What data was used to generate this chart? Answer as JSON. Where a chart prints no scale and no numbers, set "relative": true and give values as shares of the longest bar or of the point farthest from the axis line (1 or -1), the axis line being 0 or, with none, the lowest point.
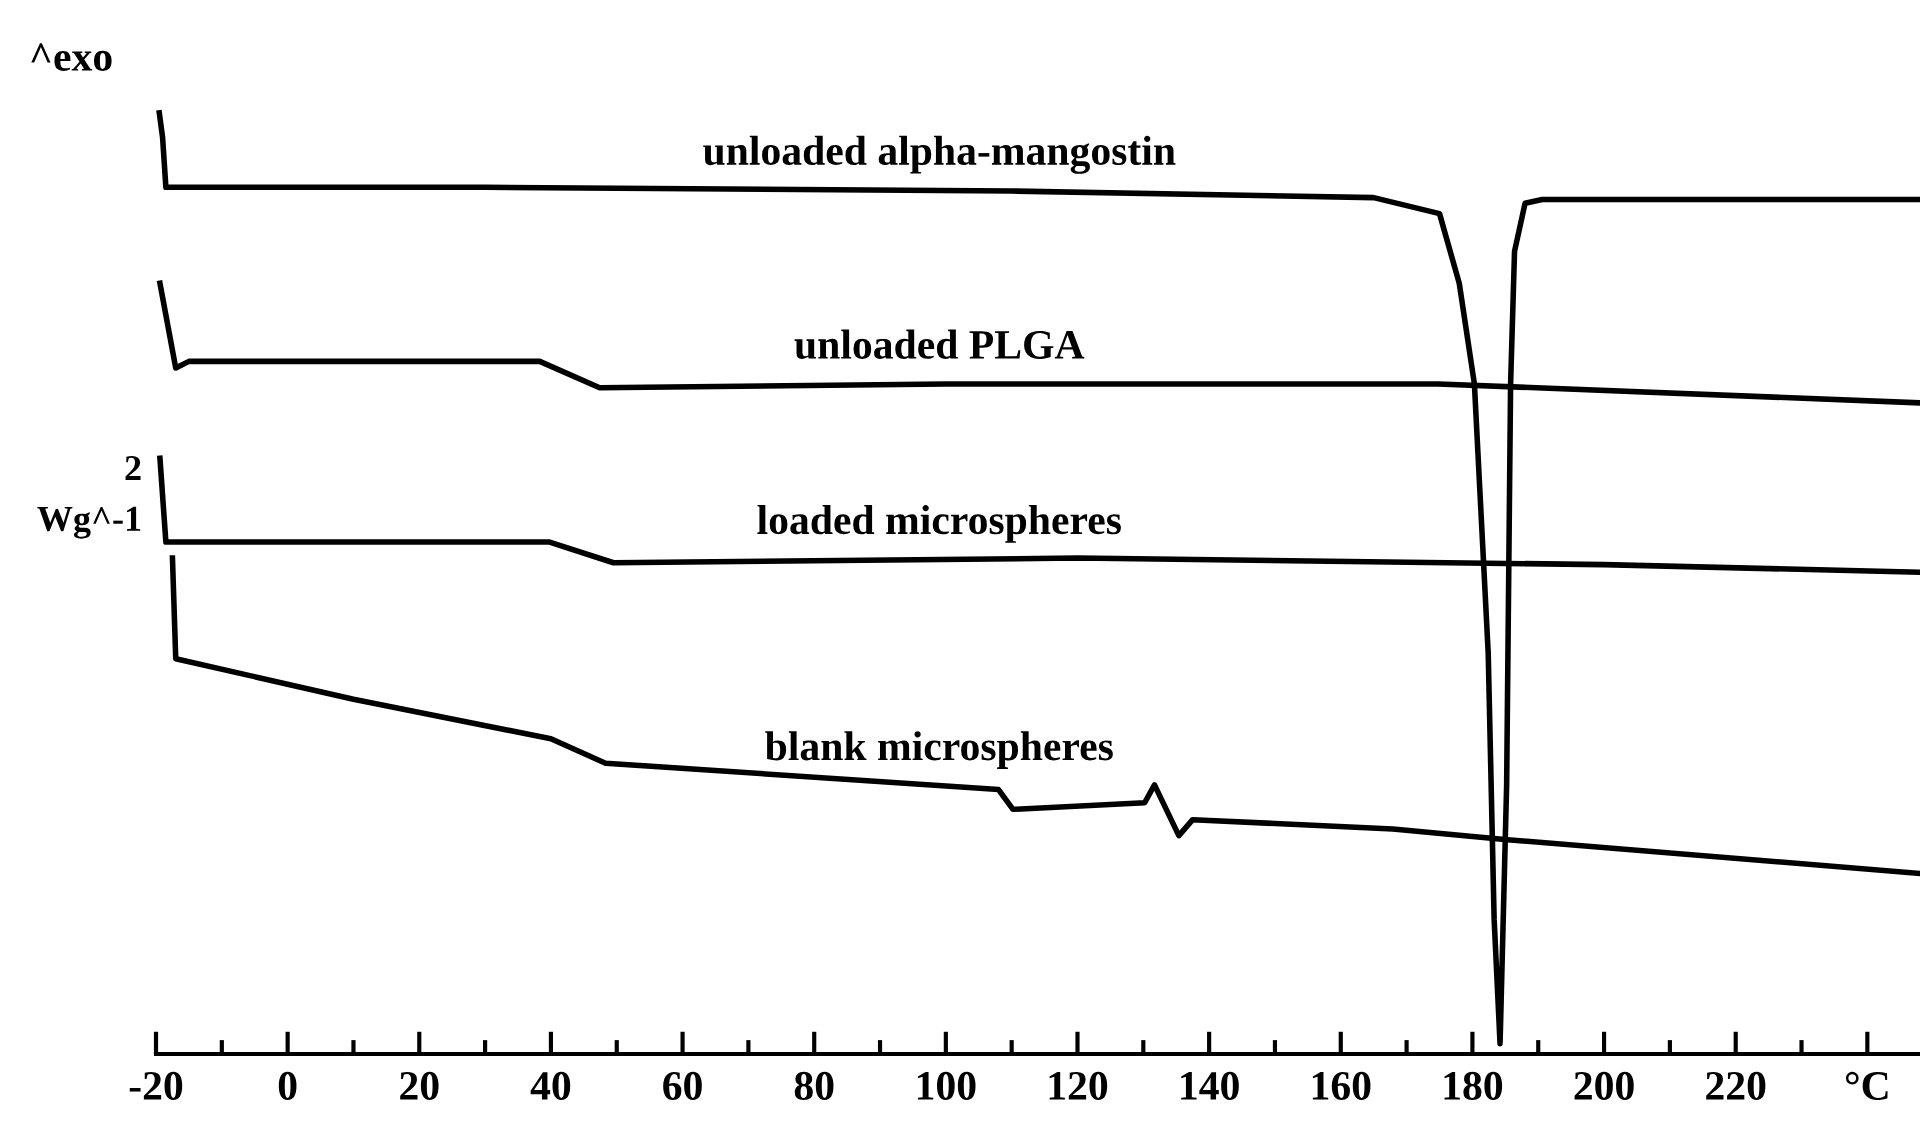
{
  "chart_data": {
    "type": "line",
    "relative": true,
    "xlim": [
      -20,
      248
    ],
    "xticks": [
      -20,
      {
        "value": -10,
        "label": null
      },
      0,
      {
        "value": 10,
        "label": null
      },
      20,
      {
        "value": 30,
        "label": null
      },
      40,
      {
        "value": 50,
        "label": null
      },
      60,
      {
        "value": 70,
        "label": null
      },
      80,
      {
        "value": 90,
        "label": null
      },
      100,
      {
        "value": 110,
        "label": null
      },
      120,
      {
        "value": 130,
        "label": null
      },
      140,
      {
        "value": 150,
        "label": null
      },
      160,
      {
        "value": 170,
        "label": null
      },
      180,
      {
        "value": 190,
        "label": null
      },
      200,
      {
        "value": 210,
        "label": null
      },
      220,
      {
        "value": 230,
        "label": null
      },
      {
        "value": 240,
        "label": "°C"
      }
    ],
    "grid": false,
    "legend": false,
    "marker": "none",
    "line_style": "solid",
    "annotations": [
      "^exo",
      "2",
      "Wg^-1"
    ],
    "series": [
      {
        "name": "unloaded alpha-mangostin",
        "color": "#000000",
        "x": [
          -19.5,
          -19,
          -18.5,
          30,
          110,
          165,
          175,
          178,
          180.3,
          182.4,
          183.3,
          184.2,
          185.2,
          185.8,
          186.4,
          188,
          190.6,
          247.7
        ],
        "values": [
          1.0,
          0.974,
          0.921,
          0.921,
          0.917,
          0.91,
          0.893,
          0.819,
          0.712,
          0.426,
          0.143,
          0.011,
          0.286,
          0.712,
          0.853,
          0.904,
          0.908,
          0.908
        ]
      },
      {
        "name": "unloaded PLGA",
        "color": "#000000",
        "x": [
          -19.4,
          -17,
          -15,
          38.3,
          47.4,
          100,
          174.8,
          247.7
        ],
        "values": [
          0.819,
          0.729,
          0.736,
          0.736,
          0.708,
          0.712,
          0.712,
          0.692
        ]
      },
      {
        "name": "loaded microspheres",
        "color": "#000000",
        "x": [
          -19.4,
          -18.5,
          39.8,
          49.5,
          120,
          200,
          247.7
        ],
        "values": [
          0.633,
          0.544,
          0.544,
          0.522,
          0.527,
          0.52,
          0.512
        ]
      },
      {
        "name": "blank microspheres",
        "color": "#000000",
        "x": [
          -17.5,
          -17,
          10,
          40,
          48.3,
          108,
          110.2,
          130.2,
          131.7,
          135.4,
          137.5,
          167.9,
          184.9,
          247.7
        ],
        "values": [
          0.527,
          0.42,
          0.377,
          0.335,
          0.309,
          0.281,
          0.26,
          0.267,
          0.286,
          0.232,
          0.249,
          0.239,
          0.228,
          0.192
        ]
      }
    ]
  }
}
